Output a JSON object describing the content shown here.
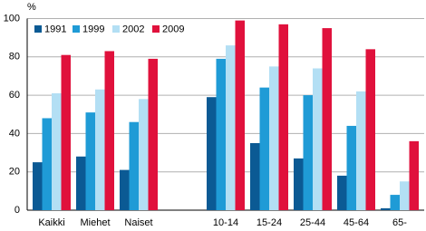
{
  "chart_data": {
    "type": "bar",
    "y_label": "%",
    "categories": [
      "Kaikki",
      "Miehet",
      "Naiset",
      null,
      "10-14",
      "15-24",
      "25-44",
      "45-64",
      "65-"
    ],
    "series": [
      {
        "name": "1991",
        "color": "#0b5a94",
        "values": [
          25,
          28,
          21,
          null,
          59,
          35,
          27,
          18,
          1
        ]
      },
      {
        "name": "1999",
        "color": "#1f9bd6",
        "values": [
          48,
          51,
          46,
          null,
          79,
          64,
          60,
          44,
          8
        ]
      },
      {
        "name": "2002",
        "color": "#b3dff4",
        "values": [
          61,
          63,
          58,
          null,
          86,
          75,
          74,
          62,
          15
        ]
      },
      {
        "name": "2009",
        "color": "#e0113c",
        "values": [
          81,
          83,
          79,
          null,
          99,
          97,
          95,
          84,
          36
        ]
      }
    ],
    "ylim": [
      0,
      100
    ],
    "yticks": [
      0,
      20,
      40,
      60,
      80,
      100
    ],
    "grid": true,
    "legend": "top-left"
  }
}
